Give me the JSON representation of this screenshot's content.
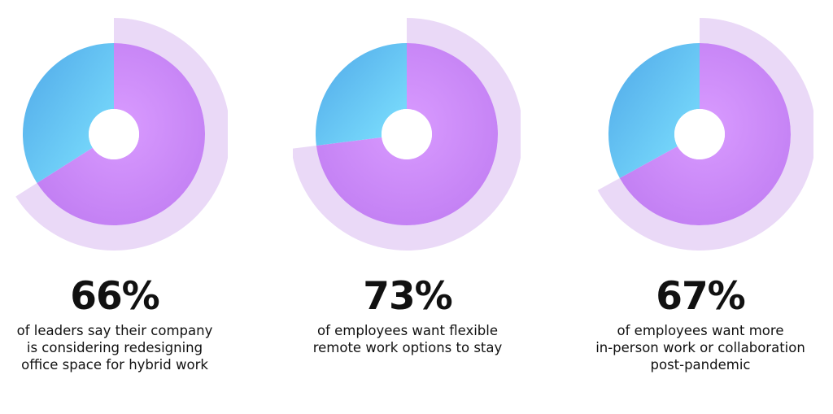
{
  "colors": {
    "purple": "#c27ff3",
    "blue": "#5ec4f2",
    "ring": "#ead9f7",
    "text": "#111111"
  },
  "chart_data": [
    {
      "type": "pie",
      "value": 66,
      "value_label": "66%",
      "caption_lines": [
        "of leaders say their company",
        "is considering redesigning",
        "office space for hybrid work"
      ]
    },
    {
      "type": "pie",
      "value": 73,
      "value_label": "73%",
      "caption_lines": [
        "of employees want flexible",
        "remote work options to stay"
      ]
    },
    {
      "type": "pie",
      "value": 67,
      "value_label": "67%",
      "caption_lines": [
        "of employees want more",
        "in-person work or collaboration",
        "post-pandemic"
      ]
    }
  ]
}
